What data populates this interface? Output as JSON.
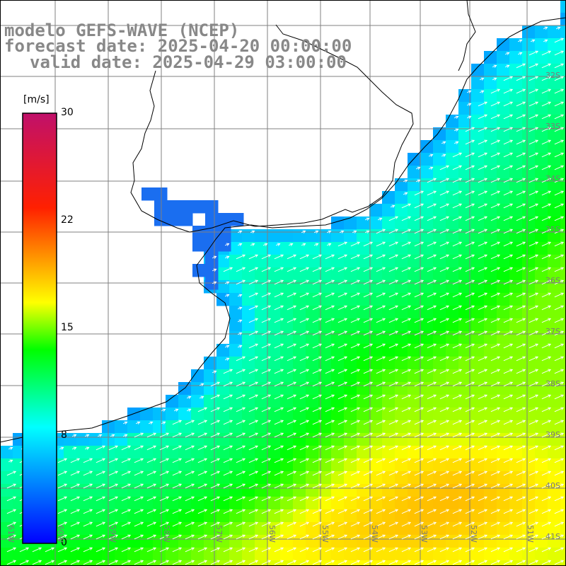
{
  "title": {
    "line1": "modelo GEFS-WAVE (NCEP)",
    "line2": "forecast date: 2025-04-20 00:00:00",
    "line3": "valid date: 2025-04-29 03:00:00"
  },
  "colorbar": {
    "unit": "[m/s]",
    "ticks": [
      "30",
      "22",
      "15",
      "8",
      "0"
    ],
    "range": [
      0,
      30
    ],
    "colors": [
      "#0000ff",
      "#00ffff",
      "#00ff00",
      "#ffff00",
      "#ff0000",
      "#c0106a"
    ]
  },
  "map": {
    "lat_labels": [
      "32S",
      "33S",
      "34S",
      "35S",
      "36S",
      "37S",
      "38S",
      "39S",
      "40S",
      "41S"
    ],
    "lon_labels": [
      "61W",
      "60W",
      "59W",
      "58W",
      "57W",
      "56W",
      "55W",
      "54W",
      "53W",
      "52W",
      "51W"
    ],
    "land_color": "#ffffff",
    "grid_color": "#808080",
    "coast_color": "#000000",
    "arrow_color": "#ffffff"
  }
}
